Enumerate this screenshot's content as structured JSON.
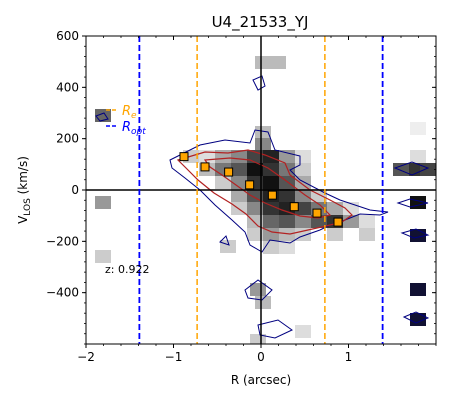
{
  "chart_data": {
    "type": "scatter",
    "title": "U4_21533_YJ",
    "xlabel": "R (arcsec)",
    "ylabel_main": "V",
    "ylabel_sub": "LOS",
    "ylabel_unit": " (km/s)",
    "xlim": [
      -2.0,
      2.0
    ],
    "ylim": [
      -600,
      600
    ],
    "xticks": [
      -2,
      -1,
      0,
      1
    ],
    "yticks": [
      600,
      400,
      200,
      0,
      -200,
      -400
    ],
    "xtick_labels": [
      "−2",
      "−1",
      "0",
      "1"
    ],
    "ytick_labels": [
      "600",
      "400",
      "200",
      "0",
      "−200",
      "−400"
    ],
    "annotation": "z: 0.922",
    "legend": {
      "placement": "upper-left",
      "entries": [
        {
          "main": "R",
          "sub": "e",
          "color": "#ffa500",
          "style": "dashed"
        },
        {
          "main": "R",
          "sub": "opt",
          "color": "#0000ff",
          "style": "dashed"
        }
      ]
    },
    "reference_lines": {
      "re": [
        -0.73,
        0.73
      ],
      "ropt": [
        -1.39,
        1.39
      ],
      "re_color": "#ffa500",
      "ropt_color": "#0000ff"
    },
    "velocity_points": {
      "marker_color": "#ffa500",
      "edge_color": "#000000",
      "x": [
        -0.88,
        -0.64,
        -0.37,
        -0.13,
        0.13,
        0.38,
        0.64,
        0.88
      ],
      "y": [
        130,
        90,
        70,
        20,
        -20,
        -65,
        -90,
        -125
      ]
    },
    "grid": false
  }
}
